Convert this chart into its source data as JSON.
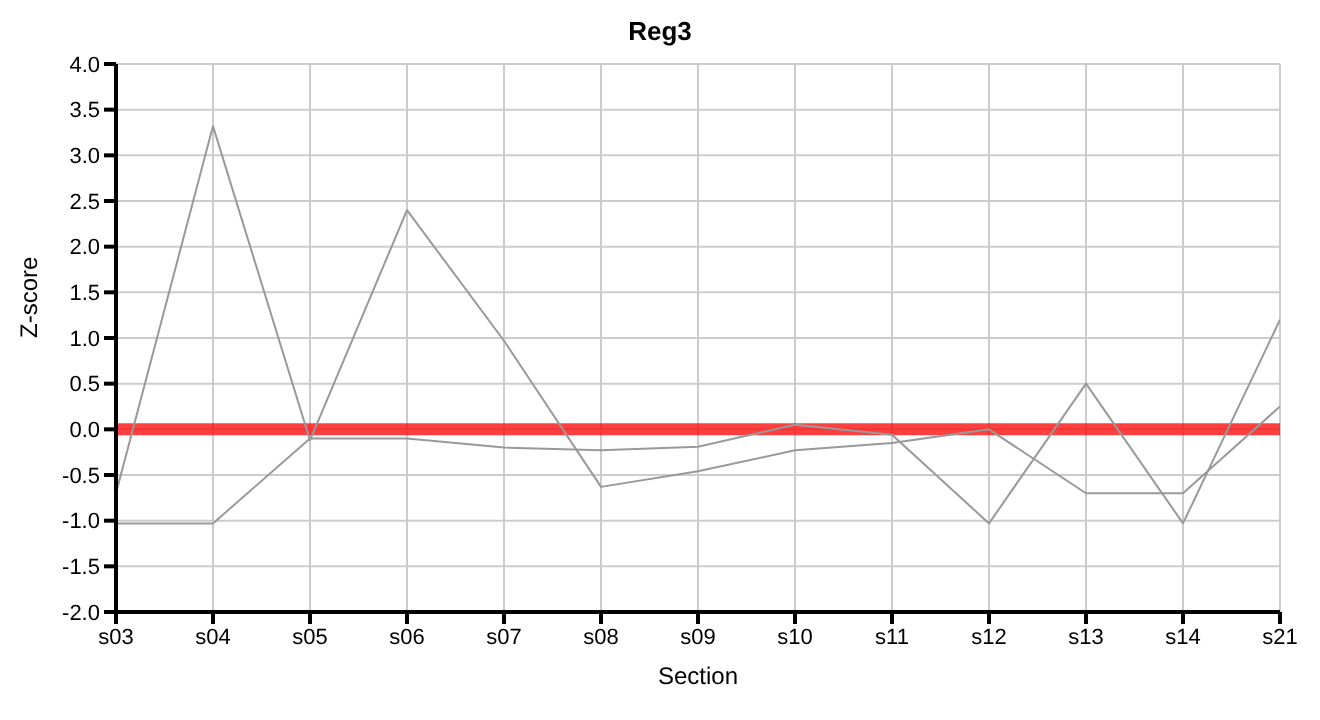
{
  "chart_data": {
    "type": "line",
    "title": "Reg3",
    "xlabel": "Section",
    "ylabel": "Z-score",
    "categories": [
      "s03",
      "s04",
      "s05",
      "s06",
      "s07",
      "s08",
      "s09",
      "s10",
      "s11",
      "s12",
      "s13",
      "s14",
      "s21"
    ],
    "series": [
      {
        "color": "#999999",
        "values": [
          -0.7,
          3.32,
          -0.12,
          2.4,
          0.97,
          -0.63,
          -0.46,
          -0.23,
          -0.15,
          0.0,
          -0.7,
          -0.7,
          0.25
        ]
      },
      {
        "color": "#999999",
        "values": [
          -1.03,
          -1.03,
          -0.1,
          -0.1,
          -0.2,
          -0.23,
          -0.19,
          0.05,
          -0.06,
          -1.03,
          0.5,
          -1.03,
          1.2
        ]
      }
    ],
    "ylim": [
      -2,
      4
    ],
    "yticks": [
      {
        "value": -2,
        "label": "-2.0"
      },
      {
        "value": -1.5,
        "label": "-1.5"
      },
      {
        "value": -1,
        "label": "-1.0"
      },
      {
        "value": -0.5,
        "label": "-0.5"
      },
      {
        "value": 0,
        "label": "0.0"
      },
      {
        "value": 0.5,
        "label": "0.5"
      },
      {
        "value": 1,
        "label": "1.0"
      },
      {
        "value": 1.5,
        "label": "1.5"
      },
      {
        "value": 2,
        "label": "2.0"
      },
      {
        "value": 2.5,
        "label": "2.5"
      },
      {
        "value": 3,
        "label": "3.0"
      },
      {
        "value": 3.5,
        "label": "3.5"
      },
      {
        "value": 4,
        "label": "4.0"
      }
    ],
    "ref_lines": [
      {
        "axis": "y",
        "value": 0,
        "color": "#ff0000"
      }
    ],
    "grid": true,
    "marker": "none",
    "line_style": "solid"
  }
}
